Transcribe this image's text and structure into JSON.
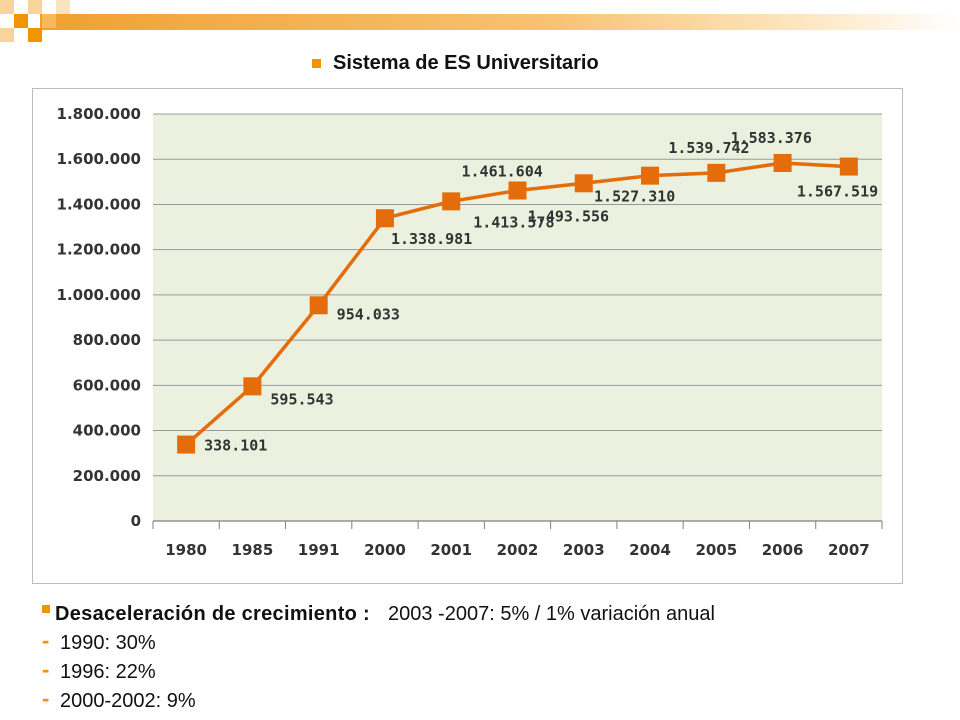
{
  "slide": {
    "title": "Sistema de ES Universitario",
    "accent_color": "#f29400"
  },
  "notes": {
    "main_label": "Desaceleración de crecimiento :",
    "main_text": "2003 -2007:  5% / 1% variación anual",
    "items": [
      "1990: 30%",
      "1996: 22%",
      "2000-2002:  9%"
    ]
  },
  "chart_data": {
    "type": "line",
    "categories": [
      "1980",
      "1985",
      "1991",
      "2000",
      "2001",
      "2002",
      "2003",
      "2004",
      "2005",
      "2006",
      "2007"
    ],
    "series": [
      {
        "values": [
          338101,
          595543,
          954033,
          1338981,
          1413578,
          1461604,
          1493556,
          1527310,
          1539742,
          1583376,
          1567519
        ],
        "labels": [
          "338.101",
          "595.543",
          "954.033",
          "1.338.981",
          "1.413.578",
          "1.461.604",
          "1.493.556",
          "1.527.310",
          "1.539.742",
          "1.583.376",
          "1.567.519"
        ],
        "color": "#e46c0a"
      }
    ],
    "ylim": [
      0,
      1800000
    ],
    "yticks": [
      0,
      200000,
      400000,
      600000,
      800000,
      1000000,
      1200000,
      1400000,
      1600000,
      1800000
    ],
    "ytick_labels": [
      "0",
      "200.000",
      "400.000",
      "600.000",
      "800.000",
      "1.000.000",
      "1.200.000",
      "1.400.000",
      "1.600.000",
      "1.800.000"
    ],
    "grid": true,
    "plot_background": "#ebf1de",
    "xlabel": "",
    "ylabel": ""
  }
}
